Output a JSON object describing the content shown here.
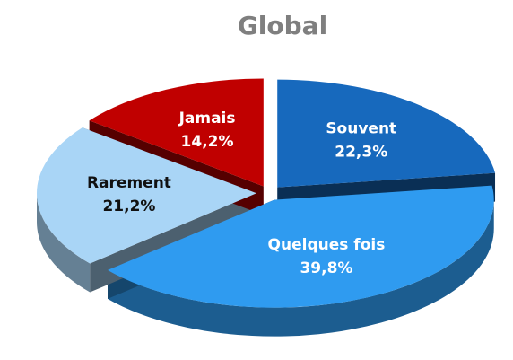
{
  "chart_data": {
    "type": "pie",
    "title": "Global",
    "categories": [
      "Souvent",
      "Quelques fois",
      "Rarement",
      "Jamais"
    ],
    "values": [
      22.3,
      39.8,
      21.2,
      14.2
    ],
    "value_labels": [
      "22,3%",
      "39,8%",
      "21,2%",
      "14,2%"
    ],
    "colors": [
      "#1769bd",
      "#2f9bf0",
      "#a9d5f6",
      "#c00000"
    ]
  }
}
